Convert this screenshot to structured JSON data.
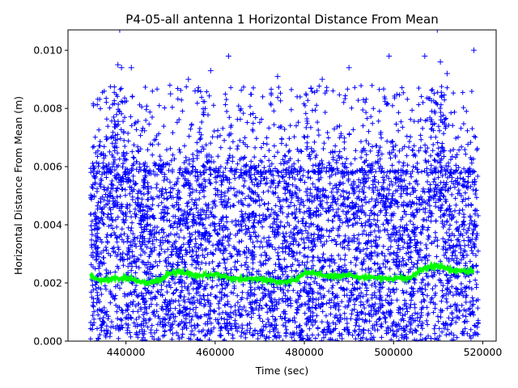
{
  "chart_data": {
    "type": "scatter",
    "title": "P4-05-all antenna 1 Horizontal Distance From Mean",
    "xlabel": "Time (sec)",
    "ylabel": "Horizontal Distance From Mean (m)",
    "xlim": [
      427000,
      523000
    ],
    "ylim": [
      0.0,
      0.0107
    ],
    "x_ticks": [
      440000,
      460000,
      480000,
      500000,
      520000
    ],
    "x_tick_labels": [
      "440000",
      "460000",
      "480000",
      "500000",
      "520000"
    ],
    "y_ticks": [
      0.0,
      0.002,
      0.004,
      0.006,
      0.008,
      0.01
    ],
    "y_tick_labels": [
      "0.000",
      "0.002",
      "0.004",
      "0.006",
      "0.008",
      "0.010"
    ],
    "grid": false,
    "legend": "none",
    "series": [
      {
        "marker": "+",
        "color": "#0000ff",
        "x_range": [
          432000,
          519000
        ],
        "y_range": [
          0.0,
          0.0107
        ],
        "typical_upper": 0.0058,
        "description_points": [
          [
            438600,
            0.0107
          ],
          [
            438200,
            0.0095
          ],
          [
            439000,
            0.0094
          ],
          [
            441200,
            0.0094
          ],
          [
            450000,
            0.0085
          ],
          [
            454000,
            0.009
          ],
          [
            455500,
            0.0086
          ],
          [
            459000,
            0.0093
          ],
          [
            463000,
            0.0098
          ],
          [
            474000,
            0.0091
          ],
          [
            481500,
            0.0087
          ],
          [
            484000,
            0.009
          ],
          [
            490000,
            0.0094
          ],
          [
            499000,
            0.0098
          ],
          [
            507000,
            0.0098
          ],
          [
            509800,
            0.0107
          ],
          [
            510500,
            0.0096
          ],
          [
            512000,
            0.0092
          ],
          [
            518000,
            0.01
          ]
        ]
      },
      {
        "marker": "line",
        "color": "#00ff00",
        "x": [
          432000,
          434000,
          436000,
          438000,
          440000,
          442000,
          444000,
          446000,
          448000,
          450000,
          452000,
          454000,
          456000,
          458000,
          460000,
          462000,
          464000,
          466000,
          468000,
          470000,
          472000,
          474000,
          476000,
          478000,
          480000,
          482000,
          484000,
          486000,
          488000,
          490000,
          492000,
          494000,
          496000,
          498000,
          500000,
          502000,
          504000,
          506000,
          508000,
          510000,
          512000,
          514000,
          516000,
          518000
        ],
        "y": [
          0.00225,
          0.00208,
          0.0021,
          0.00215,
          0.00218,
          0.0021,
          0.002,
          0.00205,
          0.00212,
          0.00235,
          0.00238,
          0.00232,
          0.00225,
          0.00228,
          0.0023,
          0.00222,
          0.00215,
          0.00212,
          0.00215,
          0.00212,
          0.00208,
          0.00205,
          0.00205,
          0.0021,
          0.00235,
          0.00238,
          0.00228,
          0.00222,
          0.00225,
          0.00228,
          0.0022,
          0.00218,
          0.0022,
          0.00215,
          0.00215,
          0.00218,
          0.0022,
          0.00245,
          0.00255,
          0.00258,
          0.00248,
          0.00245,
          0.0024,
          0.0024
        ]
      }
    ]
  }
}
